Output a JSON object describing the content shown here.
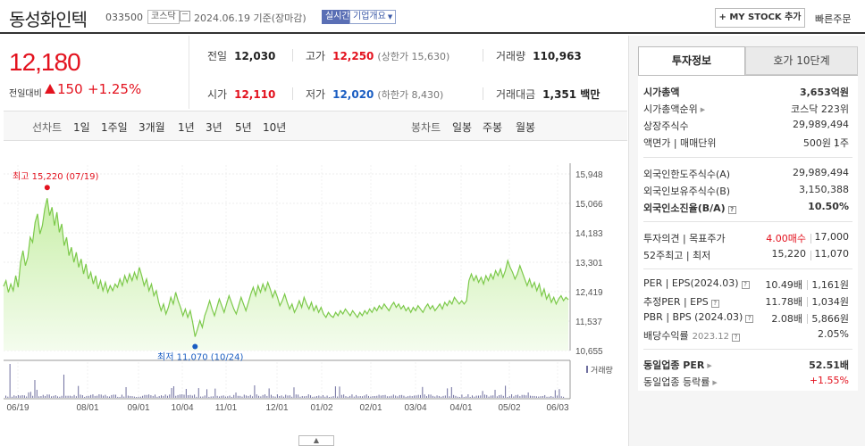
{
  "header": {
    "stock_name": "동성화인텍",
    "stock_code": "033500",
    "market_badge": "코스닥",
    "date_text": "2024.06.19 기준(장마감)",
    "realtime_label": "실시간",
    "overview_label": "기업개요",
    "mystock_label": "+ MY STOCK 추가",
    "quick_order_label": "빠른주문"
  },
  "price": {
    "current": "12,180",
    "diff_label": "전일대비",
    "diff": "150",
    "rate": "+1.25%",
    "up_color": "#e3121e"
  },
  "quote": {
    "prev_label": "전일",
    "prev": "12,030",
    "high_label": "고가",
    "high": "12,250",
    "upper_limit": "(상한가 15,630)",
    "volume_label": "거래량",
    "volume": "110,963",
    "open_label": "시가",
    "open": "12,110",
    "low_label": "저가",
    "low": "12,020",
    "lower_limit": "(하한가 8,430)",
    "amount_label": "거래대금",
    "amount": "1,351 백만"
  },
  "periods": {
    "line_label": "선차트",
    "line_items": [
      "1일",
      "1주일",
      "3개월",
      "1년",
      "3년",
      "5년",
      "10년"
    ],
    "selected": "1년",
    "candle_label": "봉차트",
    "candle_items": [
      "일봉",
      "주봉",
      "월봉"
    ]
  },
  "chart_data": {
    "type": "area",
    "y_ticks": [
      "15,948",
      "15,066",
      "14,183",
      "13,301",
      "12,419",
      "11,537",
      "10,655"
    ],
    "x_ticks": [
      "06/19",
      "08/01",
      "09/01",
      "10/04",
      "11/01",
      "12/01",
      "01/02",
      "02/01",
      "03/04",
      "04/01",
      "05/02",
      "06/03"
    ],
    "ylim": [
      10655,
      15948
    ],
    "high_label": "최고 15,220 (07/19)",
    "low_label": "최저 11,070 (10/24)",
    "volume_legend": "거래량",
    "line_color": "#7cc94a",
    "fill_color": "#c9efa9",
    "values": [
      12580,
      12750,
      12400,
      12650,
      12450,
      12900,
      12550,
      13300,
      13650,
      13200,
      13450,
      14050,
      13900,
      14500,
      14750,
      14150,
      14400,
      14900,
      15220,
      14700,
      14950,
      14400,
      14800,
      14200,
      14450,
      13800,
      14050,
      13500,
      13750,
      13300,
      13600,
      13150,
      13400,
      12950,
      13250,
      12800,
      13000,
      12650,
      12900,
      12500,
      12750,
      12450,
      12700,
      12400,
      12600,
      12450,
      12650,
      12550,
      12800,
      12600,
      12900,
      12700,
      12950,
      12750,
      13000,
      12800,
      13150,
      12900,
      12600,
      12800,
      12450,
      12650,
      12300,
      12450,
      12100,
      11850,
      12050,
      11750,
      11950,
      12250,
      12050,
      12400,
      12150,
      11950,
      11700,
      11900,
      11650,
      11850,
      11500,
      11070,
      11300,
      11550,
      11350,
      11700,
      11900,
      12150,
      11900,
      11700,
      11950,
      12200,
      12000,
      11800,
      12050,
      12300,
      12100,
      11900,
      11750,
      12000,
      12250,
      12050,
      11850,
      12100,
      12350,
      12550,
      12300,
      12600,
      12400,
      12650,
      12450,
      12700,
      12500,
      12250,
      12450,
      12250,
      12000,
      12150,
      12350,
      12100,
      11900,
      12050,
      11800,
      11950,
      12150,
      11950,
      12250,
      12050,
      11900,
      12100,
      11850,
      12000,
      11800,
      11950,
      11750,
      11650,
      11800,
      11700,
      11650,
      11800,
      11700,
      11850,
      11750,
      11900,
      11800,
      11700,
      11850,
      11750,
      11650,
      11800,
      11700,
      11850,
      11750,
      11900,
      11800,
      11950,
      11850,
      12000,
      11900,
      12050,
      11950,
      11850,
      12000,
      12100,
      11950,
      12050,
      11900,
      12000,
      11850,
      11950,
      11800,
      11950,
      11850,
      12000,
      11900,
      11800,
      11950,
      12050,
      11900,
      12000,
      11850,
      11950,
      12050,
      11900,
      12100,
      12000,
      12150,
      12050,
      12250,
      12150,
      12050,
      12150,
      12050,
      12150,
      12750,
      12950,
      12750,
      12900,
      12700,
      12850,
      12650,
      12900,
      12750,
      12950,
      12800,
      13050,
      12900,
      13100,
      12850,
      13050,
      13350,
      13150,
      13000,
      12800,
      12950,
      13200,
      13000,
      12800,
      12600,
      12800,
      12550,
      12700,
      12450,
      12650,
      12300,
      12500,
      12200,
      12350,
      12100,
      12250,
      12050,
      12200,
      12300,
      12150,
      12250,
      12180
    ]
  },
  "right_panel": {
    "tab_active": "투자정보",
    "tab_other": "호가 10단계",
    "rows": {
      "market_cap_label": "시가총액",
      "market_cap": "3,653억원",
      "rank_label": "시가총액순위",
      "rank": "코스닥 223위",
      "shares_label": "상장주식수",
      "shares": "29,989,494",
      "par_label": "액면가 | 매매단위",
      "par": "500원",
      "unit": "1주",
      "foreign_limit_label": "외국인한도주식수(A)",
      "foreign_limit": "29,989,494",
      "foreign_hold_label": "외국인보유주식수(B)",
      "foreign_hold": "3,150,388",
      "foreign_ratio_label": "외국인소진율(B/A)",
      "foreign_ratio": "10.50%",
      "opinion_label": "투자의견 | 목표주가",
      "opinion": "4.00매수",
      "target": "17,000",
      "week52_label": "52주최고 | 최저",
      "week52_high": "15,220",
      "week52_low": "11,070",
      "per_label": "PER | EPS(2024.03)",
      "per": "10.49배",
      "eps": "1,161원",
      "est_per_label": "추정PER | EPS",
      "est_per": "11.78배",
      "est_eps": "1,034원",
      "pbr_label": "PBR | BPS (2024.03)",
      "pbr": "2.08배",
      "bps": "5,866원",
      "div_label": "배당수익률",
      "div_date": "2023.12",
      "div": "2.05%",
      "ind_per_label": "동일업종 PER",
      "ind_per": "52.51배",
      "ind_rate_label": "동일업종 등락률",
      "ind_rate": "+1.55%"
    }
  }
}
